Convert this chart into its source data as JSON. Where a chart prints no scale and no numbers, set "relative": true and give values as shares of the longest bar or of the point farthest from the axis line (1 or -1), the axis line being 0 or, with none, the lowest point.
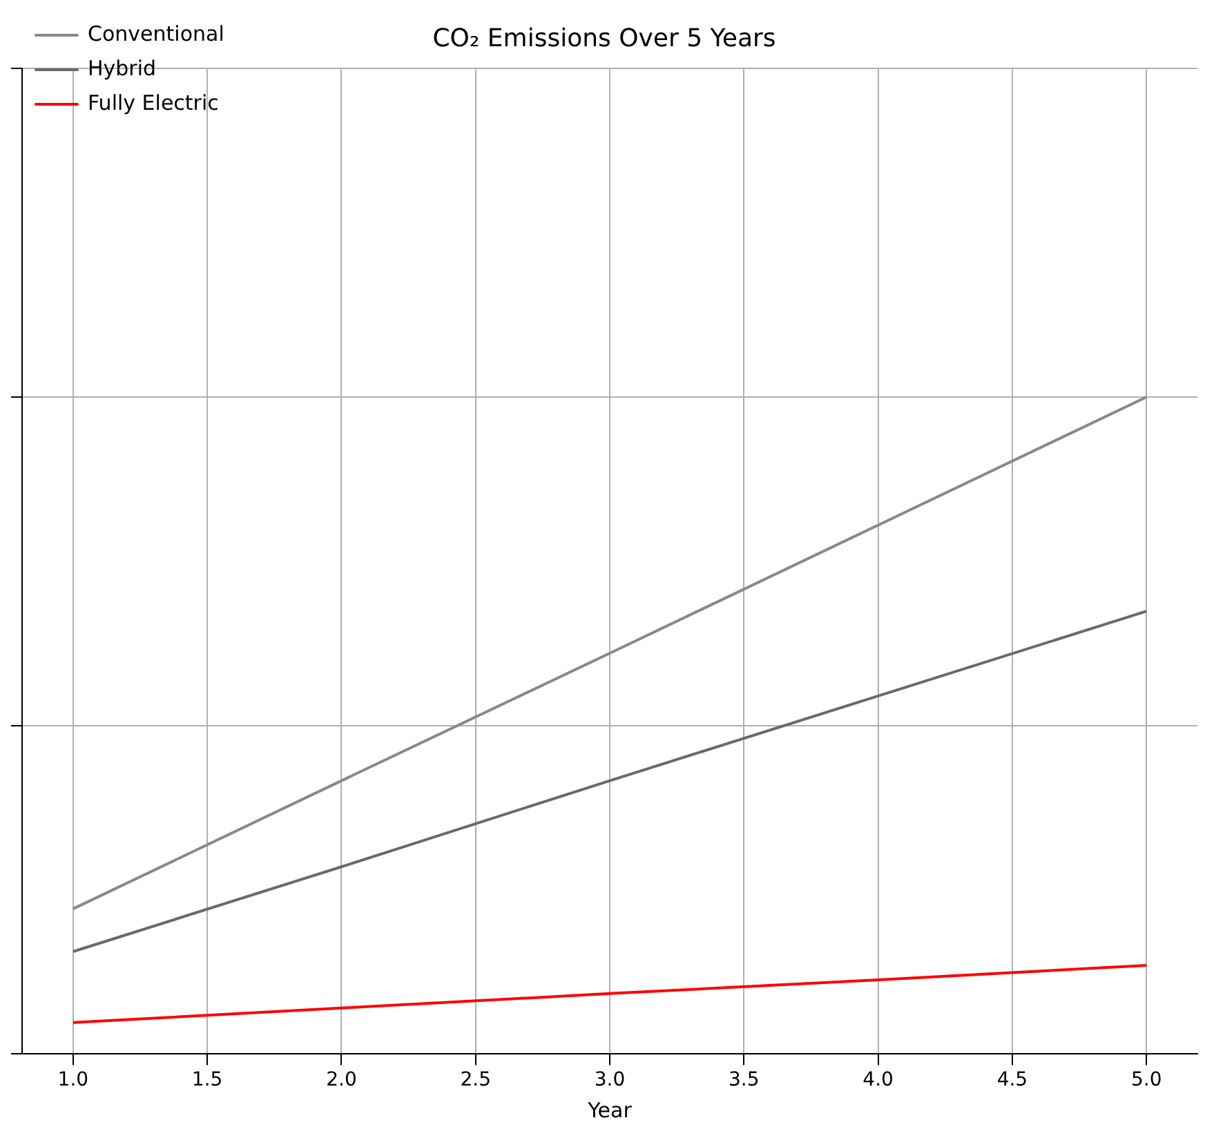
{
  "chart_data": {
    "type": "line",
    "title": "CO₂ Emissions Over 5 Years",
    "xlabel": "Year",
    "relative": true,
    "x": [
      1,
      2,
      3,
      4,
      5
    ],
    "xlim": [
      0.81,
      5.19
    ],
    "xticks": [
      {
        "value": 1,
        "label": "1.0"
      },
      {
        "value": 1.5,
        "label": "1.5"
      },
      {
        "value": 2,
        "label": "2.0"
      },
      {
        "value": 2.5,
        "label": "2.5"
      },
      {
        "value": 3,
        "label": "3.0"
      },
      {
        "value": 3.5,
        "label": "3.5"
      },
      {
        "value": 4,
        "label": "4.0"
      },
      {
        "value": 4.5,
        "label": "4.5"
      },
      {
        "value": 5,
        "label": "5.0"
      }
    ],
    "series": [
      {
        "name": "Conventional",
        "color": "#888888",
        "values": [
          0.221,
          0.416,
          0.61,
          0.805,
          1
        ]
      },
      {
        "name": "Hybrid",
        "color": "#696969",
        "values": [
          0.156,
          0.285,
          0.416,
          0.545,
          0.674
        ]
      },
      {
        "name": "Fully Electric",
        "color": "#ff0000",
        "values": [
          0.048,
          0.07,
          0.092,
          0.113,
          0.135
        ]
      }
    ],
    "grid": true,
    "legend": "top left",
    "marker": "none",
    "line_style": "solid"
  }
}
